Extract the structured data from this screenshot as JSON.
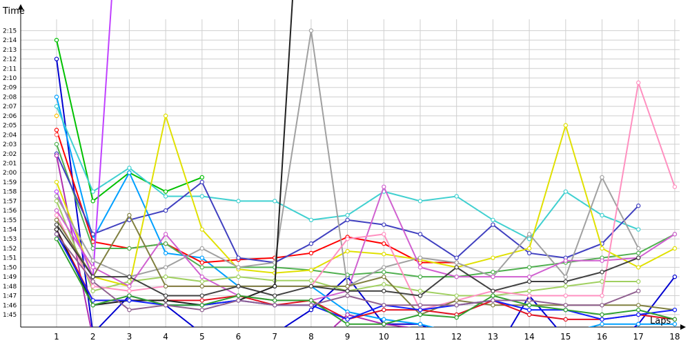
{
  "chart_data": {
    "type": "line",
    "title": "",
    "ylabel": "Time",
    "xlabel": "Laps",
    "x": [
      1,
      2,
      3,
      4,
      5,
      6,
      7,
      8,
      9,
      10,
      11,
      12,
      13,
      14,
      15,
      16,
      17,
      18
    ],
    "y_tick_labels": [
      "1:45",
      "1:46",
      "1:47",
      "1:48",
      "1:49",
      "1:50",
      "1:51",
      "1:52",
      "1:53",
      "1:54",
      "1:55",
      "1:56",
      "1:57",
      "1:58",
      "1:59",
      "2:00",
      "2:01",
      "2:02",
      "2:03",
      "2:04",
      "2:05",
      "2:06",
      "2:07",
      "2:08",
      "2:09",
      "2:10",
      "2:11",
      "2:12",
      "2:13",
      "2:14",
      "2:15"
    ],
    "ylim_seconds": [
      104,
      136
    ],
    "grid": true,
    "legend": "none",
    "series": [
      {
        "color": "#00c000",
        "values": [
          134,
          117,
          120,
          118,
          119.5,
          null,
          null,
          null,
          null,
          null,
          null,
          null,
          null,
          null,
          null,
          null,
          null,
          null
        ]
      },
      {
        "color": "#0000d0",
        "values": [
          132,
          103,
          107,
          106,
          103,
          103,
          103,
          105.5,
          109,
          104,
          104,
          102,
          100.5,
          107,
          102.5,
          101,
          104,
          109
        ]
      },
      {
        "color": "#00a0ff",
        "values": [
          128,
          113,
          120,
          111.5,
          111,
          108,
          108,
          108,
          105.3,
          104.5,
          104,
          103,
          102,
          101,
          103,
          104,
          104,
          104
        ]
      },
      {
        "color": "#40d0d0",
        "values": [
          127,
          118,
          120.5,
          117.5,
          117.5,
          117,
          117,
          115,
          115.5,
          118,
          117,
          117.5,
          115,
          113,
          118,
          115.5,
          114,
          null
        ]
      },
      {
        "color": "#ffc000",
        "values": [
          126,
          null,
          null,
          null,
          null,
          null,
          null,
          null,
          null,
          null,
          null,
          null,
          null,
          null,
          null,
          null,
          null,
          null
        ]
      },
      {
        "color": "#ff0000",
        "values": [
          124.5,
          112.7,
          112,
          112.5,
          110.5,
          110.8,
          111,
          111.5,
          113.2,
          112.5,
          110.5,
          110.5,
          null,
          null,
          null,
          null,
          null,
          null
        ]
      },
      {
        "color": "#ff6a6a",
        "values": [
          124,
          null,
          null,
          null,
          null,
          null,
          null,
          null,
          null,
          null,
          null,
          null,
          null,
          null,
          null,
          null,
          null,
          null
        ]
      },
      {
        "color": "#50b050",
        "values": [
          123,
          112,
          112,
          112.5,
          110,
          110,
          110,
          109.7,
          109.2,
          109.5,
          109,
          109,
          109.5,
          110,
          110.5,
          111,
          111.5,
          113.5
        ]
      },
      {
        "color": "#4040c0",
        "values": [
          122,
          113.5,
          115,
          116,
          119,
          111,
          110.5,
          112.5,
          115,
          114.5,
          113.5,
          111,
          114.5,
          111.5,
          111,
          112.5,
          116.5,
          null
        ]
      },
      {
        "color": "#b030b0",
        "values": [
          121.8,
          102.5,
          101,
          101.5,
          102,
          102,
          101,
          101.5,
          105,
          104,
          103.5,
          102,
          102,
          102.5,
          101.5,
          101.5,
          103,
          null
        ]
      },
      {
        "color": "#e0e000",
        "values": [
          119,
          109,
          108,
          126,
          114,
          109.8,
          109.4,
          109.7,
          111.7,
          111.4,
          110.8,
          110,
          111,
          112,
          125,
          112,
          110,
          112
        ]
      },
      {
        "color": "#c040ff",
        "values": [
          118,
          109,
          166,
          null,
          null,
          null,
          null,
          null,
          null,
          null,
          null,
          null,
          null,
          null,
          null,
          null,
          null,
          null
        ]
      },
      {
        "color": "#a0a0a0",
        "values": [
          117.5,
          110.7,
          109,
          110,
          112,
          110,
          110.5,
          135,
          108,
          110,
          111,
          110.5,
          109,
          113.5,
          109,
          119.5,
          112,
          null
        ]
      },
      {
        "color": "#a0d060",
        "values": [
          117,
          107.5,
          108.5,
          109,
          108.5,
          109,
          108.6,
          108.6,
          107.5,
          108.2,
          107.5,
          107,
          107,
          107.5,
          108,
          108.5,
          108.5,
          null
        ]
      },
      {
        "color": "#d060d0",
        "values": [
          116,
          110,
          108,
          113.5,
          109,
          107,
          106.5,
          106.5,
          107.5,
          118.5,
          110,
          109,
          109,
          109,
          110.7,
          110.7,
          111,
          113.5
        ]
      },
      {
        "color": "#ff90c0",
        "values": [
          115.5,
          108,
          107.5,
          108,
          108,
          108,
          108,
          108,
          113,
          113.5,
          105.5,
          106.5,
          107.5,
          107,
          107,
          107,
          129.5,
          118.5
        ]
      },
      {
        "color": "#808040",
        "values": [
          115,
          109,
          115.5,
          108,
          108,
          108,
          108,
          108,
          108,
          109,
          105,
          106.5,
          106,
          106,
          106,
          106,
          106,
          105.5
        ]
      },
      {
        "color": "#e01020",
        "values": [
          114,
          106.5,
          106.5,
          106.5,
          106.5,
          107,
          106,
          106.5,
          104.5,
          105.5,
          105.5,
          105,
          106.5,
          105,
          104.5,
          104.5,
          105,
          104.5
        ]
      },
      {
        "color": "#404040",
        "values": [
          114.5,
          109,
          109,
          107,
          107,
          108,
          107,
          108,
          107.5,
          107.5,
          107,
          110,
          107.5,
          108.5,
          108.5,
          109.5,
          111,
          null
        ]
      },
      {
        "color": "#202020",
        "values": [
          114,
          106,
          106.5,
          106.5,
          106,
          106.5,
          108,
          170,
          170,
          null,
          null,
          null,
          null,
          null,
          null,
          null,
          null,
          null
        ]
      },
      {
        "color": "#1020ff",
        "values": [
          113.5,
          106.5,
          106.5,
          106,
          106,
          106.5,
          106,
          106,
          104.5,
          106,
          105.5,
          106,
          106.5,
          105.5,
          105.5,
          104.5,
          105,
          105.5
        ]
      },
      {
        "color": "#30a030",
        "values": [
          113,
          106,
          107,
          106,
          106,
          107,
          106.5,
          106.5,
          104,
          104,
          105,
          104.7,
          107,
          106,
          105.5,
          105,
          105.5,
          104.5
        ]
      },
      {
        "color": "#906090",
        "values": [
          113.5,
          108.5,
          105.5,
          106,
          105.5,
          106.5,
          106,
          106,
          107,
          106,
          106,
          106,
          106.5,
          106.5,
          106,
          106,
          107.5,
          null
        ]
      }
    ]
  }
}
